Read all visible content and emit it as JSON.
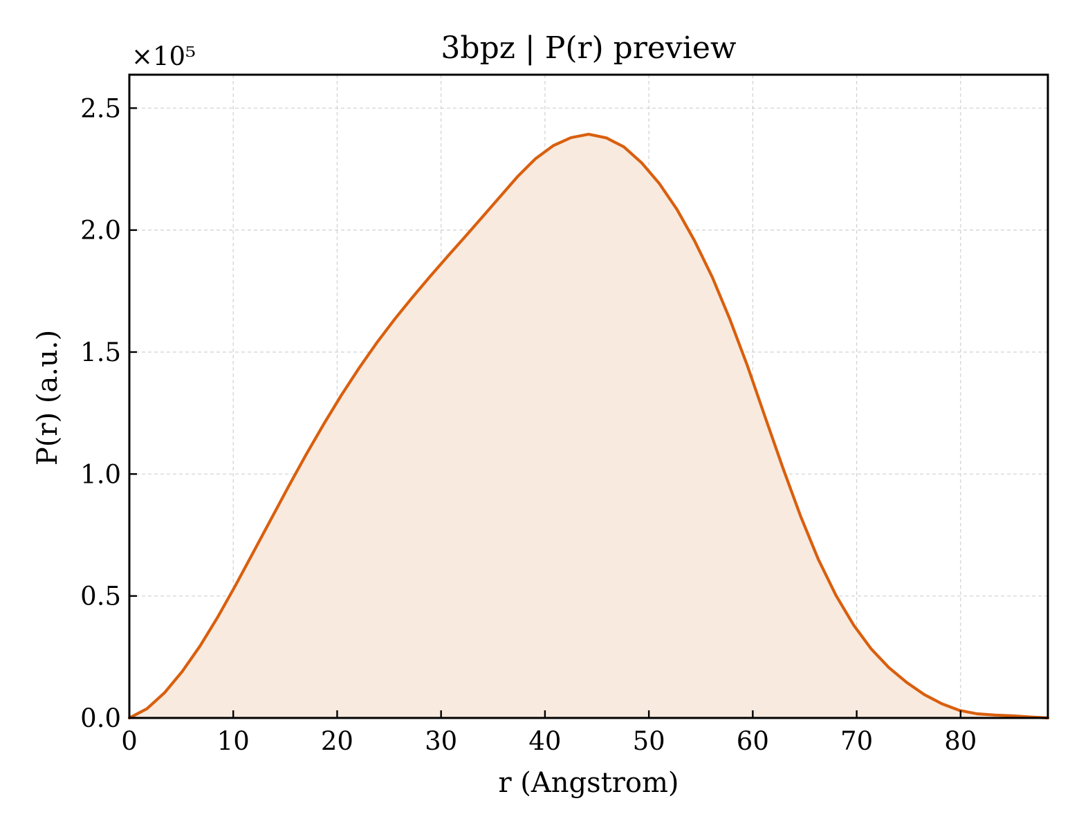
{
  "chart_data": {
    "type": "area",
    "title": "3bpz | P(r) preview",
    "xlabel": "r (Angstrom)",
    "ylabel": "P(r) (a.u.)",
    "y_multiplier_label": "×10⁵",
    "xlim": [
      0,
      88.4
    ],
    "ylim": [
      0,
      2.637
    ],
    "xticks": [
      0,
      10,
      20,
      30,
      40,
      50,
      60,
      70,
      80
    ],
    "xtick_labels": [
      "0",
      "10",
      "20",
      "30",
      "40",
      "50",
      "60",
      "70",
      "80"
    ],
    "yticks": [
      0.0,
      0.5,
      1.0,
      1.5,
      2.0,
      2.5
    ],
    "ytick_labels": [
      "0.0",
      "0.5",
      "1.0",
      "1.5",
      "2.0",
      "2.5"
    ],
    "grid": true,
    "line_color": "#d95f0e",
    "fill_color": "#f8eadf",
    "series": [
      {
        "x": [
          0.0,
          1.7,
          3.4,
          5.1,
          6.8,
          8.5,
          10.2,
          11.9,
          13.6,
          15.3,
          17.0,
          18.7,
          20.4,
          22.1,
          23.8,
          25.5,
          27.2,
          28.9,
          30.6,
          32.3,
          34.0,
          35.7,
          37.4,
          39.1,
          40.8,
          42.5,
          44.2,
          45.9,
          47.6,
          49.3,
          51.0,
          52.7,
          54.4,
          56.1,
          57.8,
          59.5,
          61.2,
          62.9,
          64.6,
          66.3,
          68.0,
          69.7,
          71.4,
          73.1,
          74.8,
          76.5,
          78.2,
          79.9,
          81.6,
          83.3,
          85.0,
          86.7,
          88.4
        ],
        "y": [
          0.0,
          0.038,
          0.104,
          0.191,
          0.295,
          0.413,
          0.542,
          0.677,
          0.812,
          0.947,
          1.079,
          1.204,
          1.323,
          1.434,
          1.537,
          1.633,
          1.722,
          1.808,
          1.891,
          1.972,
          2.055,
          2.138,
          2.221,
          2.293,
          2.346,
          2.379,
          2.393,
          2.378,
          2.341,
          2.276,
          2.191,
          2.085,
          1.956,
          1.807,
          1.634,
          1.442,
          1.232,
          1.025,
          0.827,
          0.651,
          0.503,
          0.381,
          0.283,
          0.206,
          0.146,
          0.096,
          0.058,
          0.031,
          0.017,
          0.012,
          0.009,
          0.004,
          0.0
        ]
      }
    ]
  }
}
